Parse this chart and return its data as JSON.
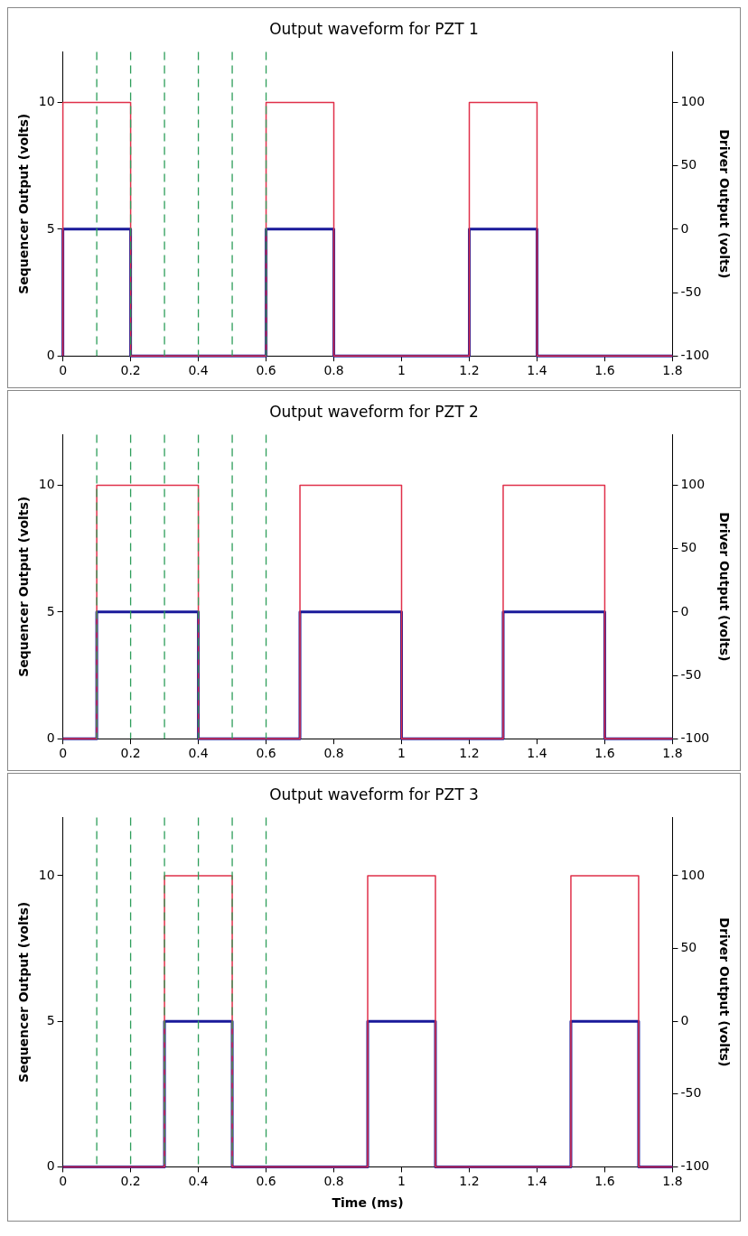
{
  "chart_data": [
    {
      "type": "line",
      "title": "Output waveform for PZT 1",
      "ylabel": "Sequencer Output (volts)",
      "y2label": "Driver Output (volts)",
      "xlim": [
        0,
        1.8
      ],
      "xticks": [
        0,
        0.2,
        0.4,
        0.6,
        0.8,
        1,
        1.2,
        1.4,
        1.6,
        1.8
      ],
      "ylim": [
        0,
        12
      ],
      "yticks": [
        0,
        5,
        10
      ],
      "y2lim": [
        -100,
        140
      ],
      "y2ticks": [
        -100,
        -50,
        0,
        50,
        100
      ],
      "grid": false,
      "legend": false,
      "marker": "none",
      "series": [
        {
          "color": "#1a1a9a",
          "x": [
            0,
            0,
            0.2,
            0.2,
            0.6,
            0.6,
            0.8,
            0.8,
            1.2,
            1.2,
            1.4,
            1.4,
            1.8
          ],
          "values": [
            0,
            5,
            5,
            0,
            0,
            5,
            5,
            0,
            0,
            5,
            5,
            0,
            0
          ]
        },
        {
          "color": "#e0304a",
          "axis": "y2",
          "x": [
            0,
            0,
            0.2,
            0.2,
            0.6,
            0.6,
            0.8,
            0.8,
            1.2,
            1.2,
            1.4,
            1.4,
            1.8
          ],
          "values": [
            -100,
            100,
            100,
            -100,
            -100,
            100,
            100,
            -100,
            -100,
            100,
            100,
            -100,
            -100
          ]
        }
      ],
      "ref_lines": [
        {
          "axis": "x",
          "value": 0.1,
          "color": "#2e9e5a",
          "line_style": "dashed"
        },
        {
          "axis": "x",
          "value": 0.2,
          "color": "#2e9e5a",
          "line_style": "dashed"
        },
        {
          "axis": "x",
          "value": 0.3,
          "color": "#2e9e5a",
          "line_style": "dashed"
        },
        {
          "axis": "x",
          "value": 0.4,
          "color": "#2e9e5a",
          "line_style": "dashed"
        },
        {
          "axis": "x",
          "value": 0.5,
          "color": "#2e9e5a",
          "line_style": "dashed"
        },
        {
          "axis": "x",
          "value": 0.6,
          "color": "#2e9e5a",
          "line_style": "dashed"
        }
      ]
    },
    {
      "type": "line",
      "title": "Output waveform for PZT 2",
      "ylabel": "Sequencer Output (volts)",
      "y2label": "Driver Output (volts)",
      "xlim": [
        0,
        1.8
      ],
      "xticks": [
        0,
        0.2,
        0.4,
        0.6,
        0.8,
        1,
        1.2,
        1.4,
        1.6,
        1.8
      ],
      "ylim": [
        0,
        12
      ],
      "yticks": [
        0,
        5,
        10
      ],
      "y2lim": [
        -100,
        140
      ],
      "y2ticks": [
        -100,
        -50,
        0,
        50,
        100
      ],
      "grid": false,
      "legend": false,
      "marker": "none",
      "series": [
        {
          "color": "#1a1a9a",
          "x": [
            0,
            0.1,
            0.1,
            0.4,
            0.4,
            0.7,
            0.7,
            1,
            1,
            1.3,
            1.3,
            1.6,
            1.6,
            1.8
          ],
          "values": [
            0,
            0,
            5,
            5,
            0,
            0,
            5,
            5,
            0,
            0,
            5,
            5,
            0,
            0
          ]
        },
        {
          "color": "#e0304a",
          "axis": "y2",
          "x": [
            0,
            0.1,
            0.1,
            0.4,
            0.4,
            0.7,
            0.7,
            1,
            1,
            1.3,
            1.3,
            1.6,
            1.6,
            1.8
          ],
          "values": [
            -100,
            -100,
            100,
            100,
            -100,
            -100,
            100,
            100,
            -100,
            -100,
            100,
            100,
            -100,
            -100
          ]
        }
      ],
      "ref_lines": [
        {
          "axis": "x",
          "value": 0.1,
          "color": "#2e9e5a",
          "line_style": "dashed"
        },
        {
          "axis": "x",
          "value": 0.2,
          "color": "#2e9e5a",
          "line_style": "dashed"
        },
        {
          "axis": "x",
          "value": 0.3,
          "color": "#2e9e5a",
          "line_style": "dashed"
        },
        {
          "axis": "x",
          "value": 0.4,
          "color": "#2e9e5a",
          "line_style": "dashed"
        },
        {
          "axis": "x",
          "value": 0.5,
          "color": "#2e9e5a",
          "line_style": "dashed"
        },
        {
          "axis": "x",
          "value": 0.6,
          "color": "#2e9e5a",
          "line_style": "dashed"
        }
      ]
    },
    {
      "type": "line",
      "title": "Output waveform for PZT 3",
      "xlabel": "Time (ms)",
      "ylabel": "Sequencer Output (volts)",
      "y2label": "Driver Output (volts)",
      "xlim": [
        0,
        1.8
      ],
      "xticks": [
        0,
        0.2,
        0.4,
        0.6,
        0.8,
        1,
        1.2,
        1.4,
        1.6,
        1.8
      ],
      "ylim": [
        0,
        12
      ],
      "yticks": [
        0,
        5,
        10
      ],
      "y2lim": [
        -100,
        140
      ],
      "y2ticks": [
        -100,
        -50,
        0,
        50,
        100
      ],
      "grid": false,
      "legend": false,
      "marker": "none",
      "series": [
        {
          "color": "#1a1a9a",
          "x": [
            0,
            0.3,
            0.3,
            0.5,
            0.5,
            0.9,
            0.9,
            1.1,
            1.1,
            1.5,
            1.5,
            1.7,
            1.7,
            1.8
          ],
          "values": [
            0,
            0,
            5,
            5,
            0,
            0,
            5,
            5,
            0,
            0,
            5,
            5,
            0,
            0
          ]
        },
        {
          "color": "#e0304a",
          "axis": "y2",
          "x": [
            0,
            0.3,
            0.3,
            0.5,
            0.5,
            0.9,
            0.9,
            1.1,
            1.1,
            1.5,
            1.5,
            1.7,
            1.7,
            1.8
          ],
          "values": [
            -100,
            -100,
            100,
            100,
            -100,
            -100,
            100,
            100,
            -100,
            -100,
            100,
            100,
            -100,
            -100
          ]
        }
      ],
      "ref_lines": [
        {
          "axis": "x",
          "value": 0.1,
          "color": "#2e9e5a",
          "line_style": "dashed"
        },
        {
          "axis": "x",
          "value": 0.2,
          "color": "#2e9e5a",
          "line_style": "dashed"
        },
        {
          "axis": "x",
          "value": 0.3,
          "color": "#2e9e5a",
          "line_style": "dashed"
        },
        {
          "axis": "x",
          "value": 0.4,
          "color": "#2e9e5a",
          "line_style": "dashed"
        },
        {
          "axis": "x",
          "value": 0.5,
          "color": "#2e9e5a",
          "line_style": "dashed"
        },
        {
          "axis": "x",
          "value": 0.6,
          "color": "#2e9e5a",
          "line_style": "dashed"
        }
      ]
    }
  ]
}
